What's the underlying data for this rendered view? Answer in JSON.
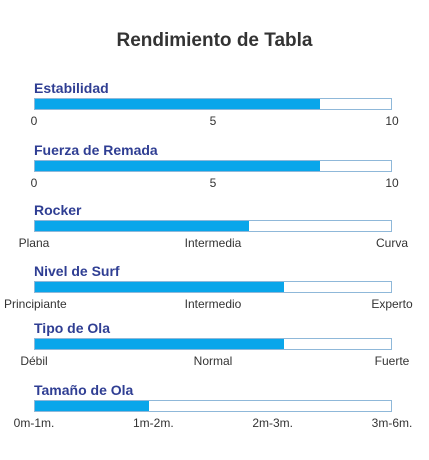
{
  "chart_data": {
    "type": "bar",
    "title": "Rendimiento de Tabla",
    "orientation": "horizontal",
    "bar_color": "#0aa6ea",
    "label_color": "#2f3e93",
    "rows": [
      {
        "label": "Estabilidad",
        "value": 8,
        "range": [
          0,
          10
        ],
        "ticks": [
          "0",
          "5",
          "10"
        ]
      },
      {
        "label": "Fuerza de Remada",
        "value": 8,
        "range": [
          0,
          10
        ],
        "ticks": [
          "0",
          "5",
          "10"
        ]
      },
      {
        "label": "Rocker",
        "value": 0.6,
        "range": [
          0,
          1
        ],
        "ticks": [
          "Plana",
          "Intermedia",
          "Curva"
        ]
      },
      {
        "label": "Nivel de Surf",
        "value": 0.7,
        "range": [
          0,
          1
        ],
        "ticks": [
          "Principiante",
          "Intermedio",
          "Experto"
        ]
      },
      {
        "label": "Tipo de Ola",
        "value": 0.7,
        "range": [
          0,
          1
        ],
        "ticks": [
          "Débil",
          "Normal",
          "Fuerte"
        ]
      },
      {
        "label": "Tamaño de Ola",
        "value": 0.32,
        "range": [
          0,
          1
        ],
        "ticks": [
          "0m-1m.",
          "1m-2m.",
          "2m-3m.",
          "3m-6m."
        ]
      }
    ]
  }
}
